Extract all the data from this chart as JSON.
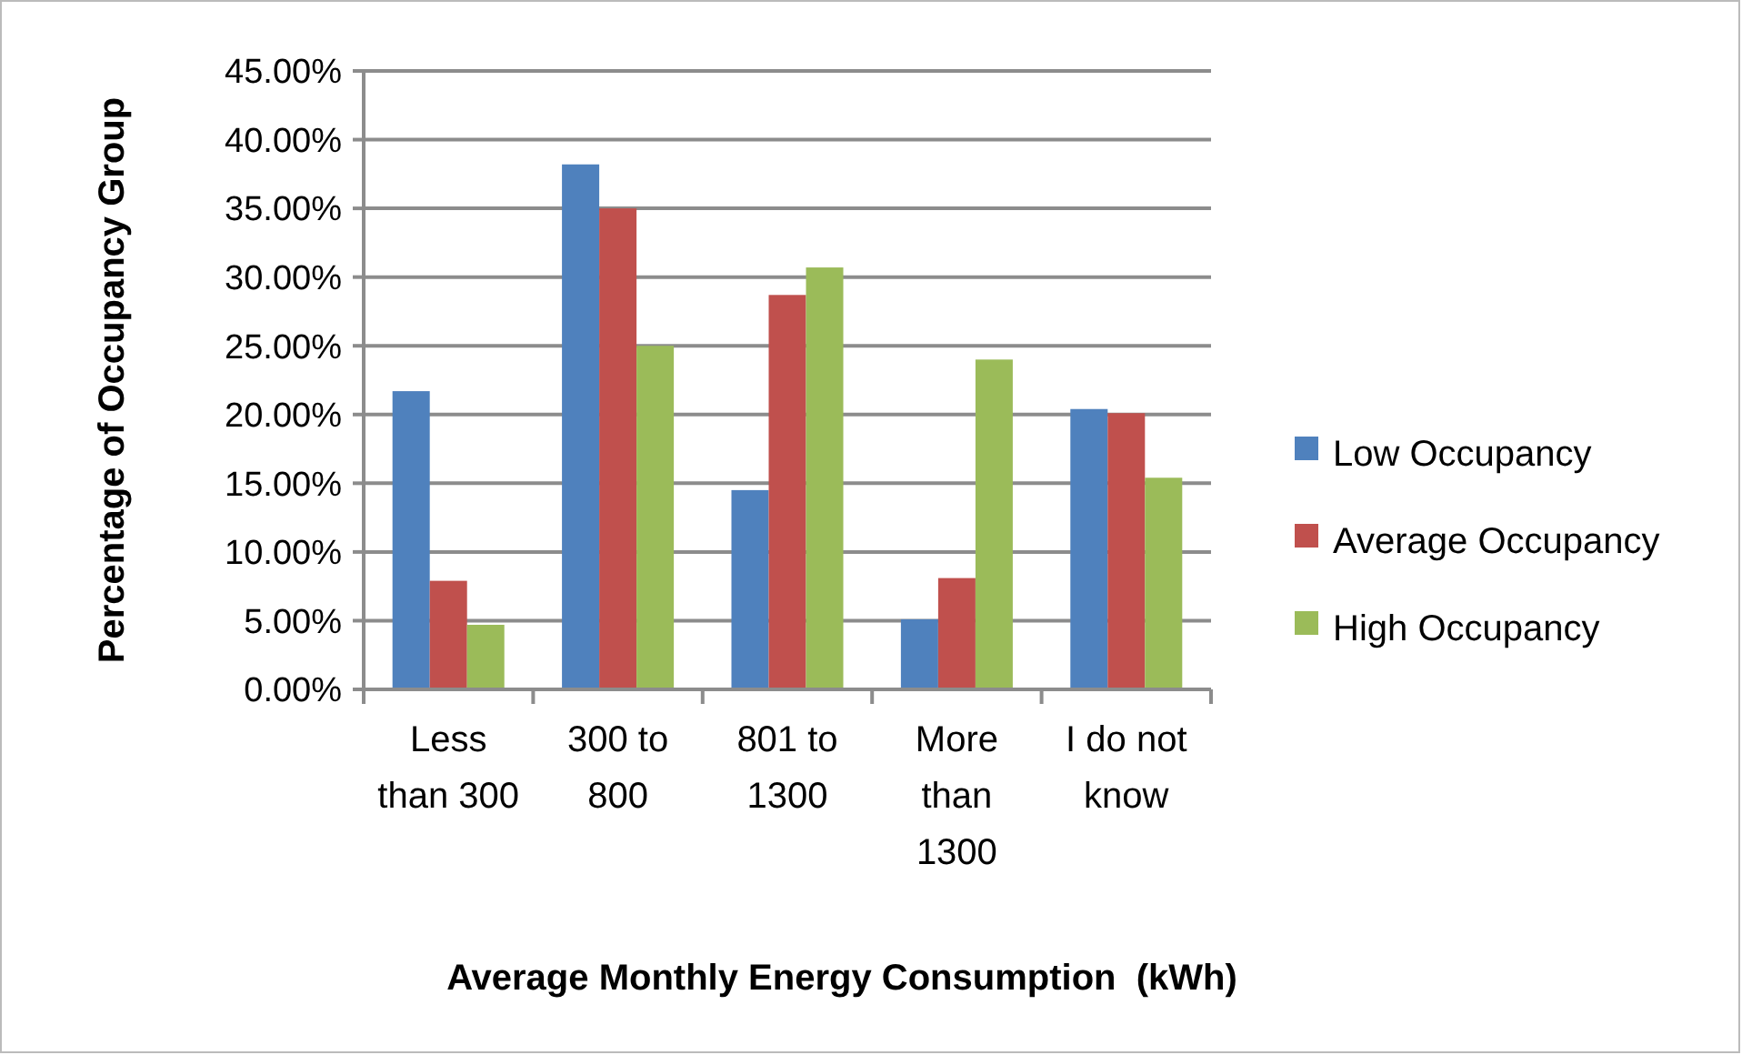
{
  "chart_data": {
    "type": "bar",
    "xlabel": "Average Monthly Energy Consumption  (kWh)",
    "ylabel": "Percentage of Occupancy Group",
    "categories": [
      "Less than 300",
      "300 to 800",
      "801 to 1300",
      "More than 1300",
      "I do not know"
    ],
    "series": [
      {
        "name": "Low Occupancy",
        "color": "#4f81bd",
        "values": [
          21.7,
          38.2,
          14.5,
          5.1,
          20.4
        ]
      },
      {
        "name": "Average Occupancy",
        "color": "#c0504d",
        "values": [
          7.9,
          35.0,
          28.7,
          8.1,
          20.1
        ]
      },
      {
        "name": "High Occupancy",
        "color": "#9bbb59",
        "values": [
          4.7,
          25.0,
          30.7,
          24.0,
          15.4
        ]
      }
    ],
    "ylim": [
      0,
      45
    ],
    "yticks": [
      {
        "value": 0,
        "label": "0.00%"
      },
      {
        "value": 5,
        "label": "5.00%"
      },
      {
        "value": 10,
        "label": "10.00%"
      },
      {
        "value": 15,
        "label": "15.00%"
      },
      {
        "value": 20,
        "label": "20.00%"
      },
      {
        "value": 25,
        "label": "25.00%"
      },
      {
        "value": 30,
        "label": "30.00%"
      },
      {
        "value": 35,
        "label": "35.00%"
      },
      {
        "value": 40,
        "label": "40.00%"
      },
      {
        "value": 45,
        "label": "45.00%"
      }
    ],
    "grid": "y",
    "legend": "right"
  }
}
